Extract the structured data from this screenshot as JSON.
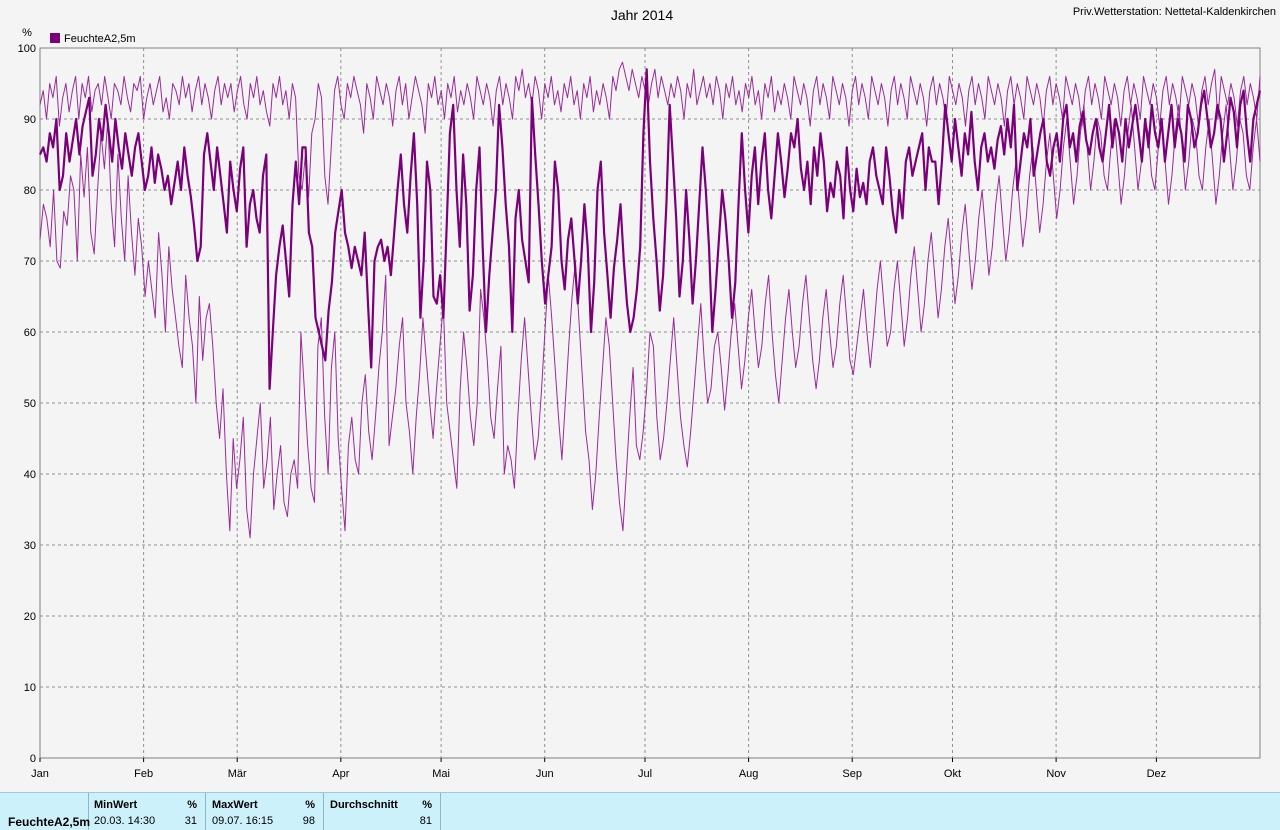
{
  "chart_data": {
    "type": "line",
    "title": "Jahr 2014",
    "station": "Priv.Wetterstation: Nettetal-Kaldenkirchen",
    "ylabel": "%",
    "ylim": [
      0,
      100
    ],
    "yticks": [
      0,
      10,
      20,
      30,
      40,
      50,
      60,
      70,
      80,
      90,
      100
    ],
    "xlim": [
      0,
      365
    ],
    "month_labels": [
      "Jan",
      "Feb",
      "Mär",
      "Apr",
      "Mai",
      "Jun",
      "Jul",
      "Aug",
      "Sep",
      "Okt",
      "Nov",
      "Dez"
    ],
    "month_starts": [
      0,
      31,
      59,
      90,
      120,
      151,
      181,
      212,
      243,
      273,
      304,
      334
    ],
    "grid": true,
    "legend": "top-left",
    "legend_label": "FeuchteA2,5m",
    "color": "#7a007a",
    "series": [
      {
        "name": "Max",
        "kind": "max",
        "values": [
          92,
          94,
          90,
          95,
          93,
          96,
          89,
          93,
          95,
          91,
          94,
          96,
          90,
          95,
          93,
          96,
          91,
          94,
          95,
          92,
          96,
          93,
          90,
          95,
          94,
          92,
          96,
          93,
          91,
          95,
          94,
          96,
          90,
          93,
          95,
          92,
          94,
          96,
          91,
          93,
          90,
          95,
          94,
          92,
          96,
          93,
          95,
          91,
          94,
          96,
          92,
          95,
          93,
          90,
          94,
          96,
          92,
          95,
          93,
          95,
          91,
          94,
          96,
          92,
          90,
          95,
          93,
          96,
          92,
          94,
          91,
          89,
          95,
          93,
          96,
          92,
          94,
          90,
          95,
          93,
          82,
          80,
          85,
          79,
          88,
          90,
          95,
          93,
          82,
          78,
          86,
          94,
          96,
          92,
          90,
          95,
          93,
          96,
          94,
          92,
          88,
          95,
          93,
          90,
          96,
          94,
          92,
          95,
          93,
          89,
          94,
          96,
          92,
          95,
          90,
          93,
          96,
          94,
          92,
          88,
          95,
          93,
          96,
          92,
          94,
          90,
          95,
          93,
          96,
          91,
          94,
          92,
          95,
          93,
          90,
          96,
          94,
          92,
          95,
          93,
          89,
          94,
          96,
          92,
          95,
          93,
          90,
          96,
          94,
          97,
          93,
          95,
          92,
          96,
          94,
          90,
          95,
          93,
          96,
          92,
          94,
          91,
          95,
          93,
          96,
          92,
          94,
          90,
          95,
          93,
          96,
          91,
          94,
          92,
          95,
          93,
          90,
          96,
          94,
          97,
          98,
          96,
          94,
          97,
          95,
          93,
          96,
          94,
          92,
          95,
          97,
          93,
          96,
          94,
          92,
          95,
          93,
          96,
          94,
          90,
          95,
          93,
          97,
          92,
          94,
          96,
          93,
          95,
          92,
          96,
          94,
          90,
          95,
          93,
          96,
          92,
          94,
          91,
          95,
          93,
          96,
          92,
          94,
          90,
          95,
          93,
          96,
          91,
          94,
          92,
          95,
          93,
          90,
          96,
          94,
          92,
          95,
          93,
          89,
          94,
          96,
          92,
          95,
          93,
          90,
          96,
          94,
          92,
          95,
          93,
          89,
          94,
          96,
          92,
          95,
          93,
          90,
          96,
          94,
          92,
          95,
          93,
          89,
          94,
          96,
          92,
          95,
          93,
          90,
          96,
          94,
          92,
          95,
          93,
          89,
          94,
          96,
          92,
          95,
          93,
          90,
          96,
          94,
          92,
          95,
          93,
          89,
          94,
          96,
          92,
          95,
          93,
          90,
          96,
          94,
          92,
          95,
          93,
          89,
          94,
          96,
          92,
          95,
          93,
          90,
          96,
          94,
          92,
          95,
          93,
          89,
          94,
          96,
          92,
          95,
          93,
          90,
          96,
          94,
          92,
          95,
          93,
          89,
          94,
          96,
          92,
          95,
          93,
          90,
          96,
          94,
          92,
          95,
          93,
          89,
          94,
          96,
          92,
          95,
          93,
          90,
          96,
          94,
          92,
          95,
          93,
          89,
          94,
          96,
          92,
          95,
          93,
          90,
          96,
          94,
          92,
          95,
          93,
          89,
          94,
          96,
          92,
          95,
          97,
          90,
          96,
          94,
          92,
          95,
          93,
          89,
          94,
          96,
          92,
          95,
          93,
          90,
          96
        ]
      },
      {
        "name": "Mittel",
        "kind": "mean",
        "values": [
          85,
          86,
          84,
          88,
          86,
          90,
          80,
          82,
          88,
          84,
          87,
          90,
          85,
          89,
          91,
          93,
          82,
          85,
          90,
          87,
          92,
          88,
          84,
          90,
          86,
          83,
          88,
          85,
          82,
          86,
          88,
          84,
          80,
          82,
          86,
          81,
          85,
          83,
          80,
          82,
          78,
          81,
          84,
          80,
          86,
          82,
          79,
          75,
          70,
          72,
          85,
          88,
          84,
          80,
          86,
          82,
          78,
          74,
          84,
          80,
          77,
          83,
          86,
          72,
          78,
          80,
          76,
          74,
          82,
          85,
          52,
          60,
          68,
          72,
          75,
          70,
          65,
          78,
          84,
          78,
          86,
          86,
          74,
          72,
          62,
          60,
          58,
          56,
          63,
          67,
          74,
          77,
          80,
          74,
          72,
          69,
          72,
          70,
          68,
          74,
          64,
          55,
          70,
          72,
          73,
          70,
          72,
          68,
          74,
          80,
          85,
          78,
          74,
          82,
          88,
          78,
          62,
          70,
          84,
          80,
          65,
          64,
          68,
          62,
          75,
          88,
          92,
          80,
          72,
          85,
          78,
          63,
          68,
          80,
          86,
          72,
          60,
          68,
          74,
          80,
          92,
          86,
          78,
          72,
          60,
          76,
          80,
          73,
          70,
          67,
          93,
          85,
          78,
          70,
          64,
          68,
          72,
          84,
          80,
          70,
          66,
          73,
          76,
          70,
          64,
          70,
          78,
          72,
          60,
          67,
          80,
          84,
          74,
          68,
          62,
          69,
          73,
          78,
          70,
          64,
          60,
          62,
          66,
          72,
          88,
          97,
          84,
          76,
          70,
          63,
          68,
          78,
          92,
          84,
          76,
          65,
          70,
          80,
          73,
          64,
          70,
          78,
          86,
          80,
          72,
          60,
          66,
          73,
          80,
          76,
          70,
          62,
          67,
          78,
          88,
          80,
          74,
          82,
          86,
          78,
          84,
          88,
          80,
          76,
          82,
          88,
          84,
          79,
          83,
          88,
          86,
          90,
          83,
          80,
          84,
          78,
          86,
          82,
          88,
          84,
          77,
          81,
          79,
          84,
          82,
          76,
          86,
          80,
          77,
          83,
          79,
          81,
          78,
          84,
          86,
          82,
          80,
          78,
          86,
          82,
          77,
          74,
          80,
          76,
          84,
          86,
          82,
          84,
          86,
          88,
          80,
          86,
          84,
          84,
          78,
          84,
          92,
          88,
          84,
          90,
          86,
          82,
          88,
          85,
          91,
          84,
          80,
          86,
          88,
          84,
          86,
          83,
          87,
          89,
          85,
          90,
          86,
          92,
          80,
          84,
          88,
          86,
          90,
          82,
          85,
          88,
          90,
          84,
          82,
          86,
          88,
          84,
          90,
          92,
          86,
          88,
          84,
          89,
          91,
          87,
          85,
          88,
          90,
          86,
          84,
          88,
          92,
          86,
          90,
          88,
          84,
          90,
          86,
          89,
          92,
          88,
          84,
          90,
          86,
          92,
          88,
          86,
          90,
          84,
          88,
          92,
          86,
          90,
          88,
          84,
          92,
          90,
          86,
          88,
          92,
          94,
          90,
          86,
          88,
          92,
          90,
          84,
          88,
          93,
          91,
          86,
          92,
          94,
          88,
          84,
          90,
          92,
          94
        ]
      },
      {
        "name": "Min",
        "kind": "min",
        "values": [
          73,
          78,
          76,
          72,
          80,
          70,
          69,
          77,
          75,
          82,
          80,
          70,
          85,
          79,
          86,
          74,
          71,
          80,
          88,
          83,
          90,
          78,
          72,
          85,
          76,
          70,
          82,
          74,
          68,
          76,
          72,
          65,
          70,
          66,
          62,
          74,
          68,
          60,
          72,
          66,
          62,
          58,
          55,
          68,
          62,
          58,
          50,
          65,
          56,
          62,
          64,
          58,
          50,
          45,
          52,
          40,
          32,
          45,
          38,
          42,
          48,
          35,
          31,
          40,
          45,
          50,
          38,
          42,
          48,
          35,
          40,
          44,
          36,
          34,
          40,
          42,
          38,
          60,
          52,
          44,
          38,
          36,
          58,
          62,
          48,
          40,
          55,
          60,
          45,
          38,
          32,
          44,
          48,
          42,
          40,
          50,
          54,
          46,
          42,
          48,
          55,
          60,
          68,
          44,
          48,
          52,
          58,
          62,
          50,
          46,
          40,
          48,
          54,
          62,
          56,
          50,
          45,
          52,
          58,
          64,
          50,
          46,
          42,
          38,
          52,
          60,
          55,
          48,
          44,
          50,
          66,
          62,
          56,
          48,
          45,
          52,
          58,
          40,
          44,
          42,
          38,
          48,
          56,
          62,
          55,
          48,
          42,
          45,
          52,
          60,
          68,
          62,
          55,
          48,
          42,
          50,
          58,
          65,
          70,
          62,
          54,
          46,
          42,
          35,
          40,
          48,
          55,
          62,
          58,
          50,
          42,
          36,
          32,
          40,
          48,
          55,
          44,
          42,
          46,
          52,
          60,
          58,
          48,
          42,
          45,
          50,
          56,
          62,
          55,
          48,
          44,
          41,
          46,
          52,
          58,
          64,
          56,
          50,
          52,
          58,
          60,
          55,
          49,
          54,
          60,
          64,
          58,
          52,
          56,
          62,
          66,
          60,
          55,
          58,
          64,
          68,
          60,
          54,
          50,
          56,
          62,
          66,
          60,
          55,
          58,
          64,
          68,
          62,
          56,
          52,
          56,
          62,
          66,
          60,
          55,
          58,
          64,
          68,
          62,
          56,
          54,
          58,
          62,
          66,
          60,
          55,
          60,
          66,
          70,
          64,
          58,
          60,
          66,
          70,
          64,
          58,
          62,
          68,
          72,
          66,
          60,
          64,
          70,
          74,
          68,
          62,
          66,
          72,
          76,
          70,
          64,
          68,
          74,
          78,
          72,
          66,
          70,
          76,
          80,
          74,
          68,
          72,
          78,
          82,
          76,
          70,
          74,
          80,
          84,
          78,
          72,
          76,
          82,
          86,
          80,
          74,
          78,
          84,
          88,
          82,
          76,
          80,
          86,
          90,
          84,
          78,
          82,
          88,
          92,
          86,
          80,
          84,
          90,
          88,
          82,
          80,
          86,
          90,
          84,
          78,
          82,
          88,
          92,
          86,
          80,
          84,
          90,
          88,
          82,
          80,
          86,
          90,
          84,
          78,
          82,
          88,
          92,
          86,
          80,
          84,
          90,
          88,
          82,
          80,
          86,
          90,
          84,
          78,
          82,
          88,
          92,
          86,
          80,
          84,
          90,
          88,
          82,
          80,
          86,
          90,
          84
        ]
      }
    ]
  },
  "footer": {
    "series_label": "FeuchteA2,5m",
    "min": {
      "label": "MinWert",
      "unit": "%",
      "datetime": "20.03.  14:30",
      "value": "31"
    },
    "max": {
      "label": "MaxWert",
      "unit": "%",
      "datetime": "09.07.  16:15",
      "value": "98"
    },
    "avg": {
      "label": "Durchschnitt",
      "unit": "%",
      "value": "81"
    }
  }
}
